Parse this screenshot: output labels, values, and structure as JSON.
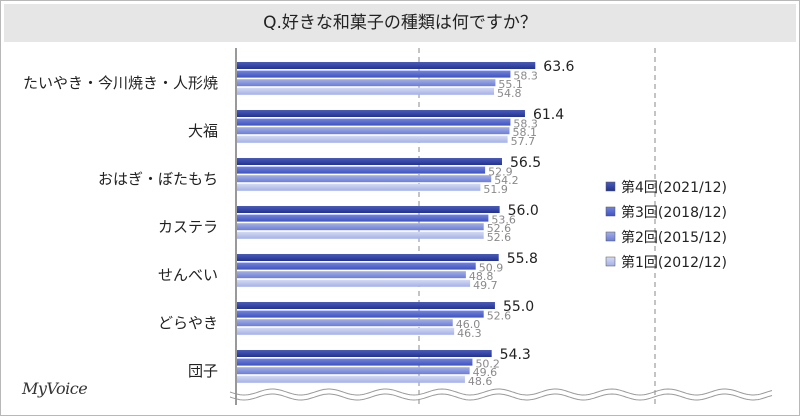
{
  "title": "Q.好きな和菓子の種類は何ですか？",
  "logo": "MyVoice",
  "chart_data": {
    "type": "bar",
    "orientation": "horizontal",
    "title": "Q.好きな和菓子の種類は何ですか？",
    "categories": [
      "たいやき・今川焼き・人形焼",
      "大福",
      "おはぎ・ぼたもち",
      "カステラ",
      "せんべい",
      "どらやき",
      "団子"
    ],
    "series": [
      {
        "name": "第4回(2021/12)",
        "color": "#2e3f9e",
        "values": [
          63.6,
          61.4,
          56.5,
          56.0,
          55.8,
          55.0,
          54.3
        ]
      },
      {
        "name": "第3回(2018/12)",
        "color": "#4f63c9",
        "values": [
          58.3,
          58.3,
          52.9,
          53.6,
          50.9,
          52.6,
          50.2
        ]
      },
      {
        "name": "第2回(2015/12)",
        "color": "#8190dc",
        "values": [
          55.1,
          58.1,
          54.2,
          52.6,
          48.8,
          46.0,
          49.6
        ]
      },
      {
        "name": "第1回(2012/12)",
        "color": "#b9c1ec",
        "values": [
          54.8,
          57.7,
          51.9,
          52.6,
          49.7,
          46.3,
          48.6
        ]
      }
    ],
    "legend": "right",
    "grid": true
  }
}
